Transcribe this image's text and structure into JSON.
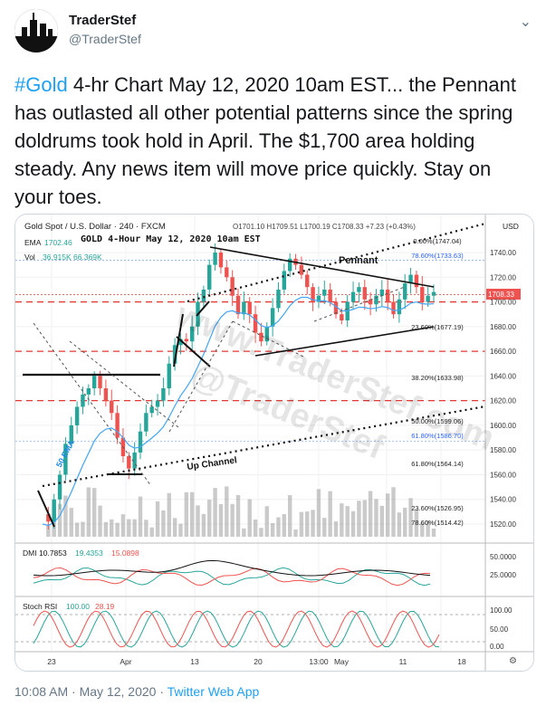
{
  "author": {
    "name": "TraderStef",
    "handle": "@TraderStef"
  },
  "tweet": {
    "hashtag": "#Gold",
    "body": " 4-hr Chart May 12, 2020 10am EST... the Pennant has outlasted all other potential patterns since the spring doldrums took hold in April.  The $1,700 area holding steady. Any news item will move price quickly. Stay on your toes."
  },
  "meta": {
    "time": "10:08 AM",
    "sep1": " · ",
    "date": "May 12, 2020",
    "sep2": " · ",
    "source": "Twitter Web App"
  },
  "chart": {
    "symbol": "Gold Spot / U.S. Dollar",
    "interval": "240",
    "feed": "FXCM",
    "ohlc": "O1701.10  H1709.51  L1700.19  C1708.33  +7.23 (+0.43%)",
    "ema_label": "EMA",
    "ema_value": "1702.46",
    "vol_label": "Vol",
    "vol_values": "36.915K  66.369K",
    "title": "GOLD 4-Hour May 12, 2020 10am EST",
    "currency": "USD",
    "price_tag": "1708.33",
    "watermark1": "www.TraderStef.com",
    "watermark2": "@TraderStef",
    "annotations": {
      "pennant": "Pennant",
      "up_channel": "Up Channel",
      "ema50": "50 EMA"
    },
    "fib_levels": [
      {
        "label": "0.00%(1747.04)",
        "color": "#222222"
      },
      {
        "label": "78.60%(1733.63)",
        "color": "#2962ff"
      },
      {
        "label": "23.60%(1677.19)",
        "color": "#222222"
      },
      {
        "label": "38.20%(1633.98)",
        "color": "#222222"
      },
      {
        "label": "50.00%(1599.06)",
        "color": "#222222"
      },
      {
        "label": "61.80%(1586.70)",
        "color": "#2962ff"
      },
      {
        "label": "61.80%(1564.14)",
        "color": "#222222"
      },
      {
        "label": "23.60%(1526.95)",
        "color": "#222222"
      },
      {
        "label": "78.60%(1514.42)",
        "color": "#222222"
      }
    ],
    "price_ticks": [
      "1740.00",
      "1720.00",
      "1700.00",
      "1680.00",
      "1660.00",
      "1640.00",
      "1620.00",
      "1600.00",
      "1580.00",
      "1560.00",
      "1540.00",
      "1520.00"
    ],
    "dmi_label": "DMI",
    "dmi_values": [
      "10.7853",
      "19.4353",
      "15.0898"
    ],
    "dmi_ticks": [
      "50.0000",
      "25.0000"
    ],
    "rsi_label": "Stoch RSI",
    "rsi_values": [
      "100.00",
      "28.19"
    ],
    "rsi_ticks": [
      "100.00",
      "50.00",
      "0.00"
    ],
    "time_ticks": [
      "23",
      "Apr",
      "13",
      "20",
      "13:00",
      "May",
      "11",
      "18"
    ],
    "colors": {
      "up": "#26a69a",
      "down": "#ef5350",
      "dmi_plus": "#26a69a",
      "dmi_minus": "#ef5350",
      "adx": "#111111"
    }
  }
}
